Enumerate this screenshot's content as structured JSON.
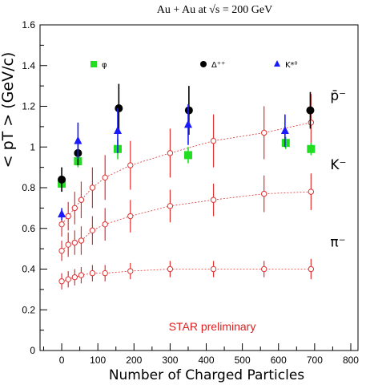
{
  "chart_data": {
    "type": "scatter",
    "title": "Au + Au at √s = 200 GeV",
    "xlabel": "Number of Charged Particles",
    "ylabel": "< pT > (GeV/c)",
    "xlim": [
      -60,
      820
    ],
    "ylim": [
      0,
      1.6
    ],
    "xticks": [
      0,
      100,
      200,
      300,
      400,
      500,
      600,
      700,
      800
    ],
    "yticks": [
      0,
      0.2,
      0.4,
      0.6,
      0.8,
      1,
      1.2,
      1.4,
      1.6
    ],
    "annotation": "STAR preliminary",
    "colors": {
      "pbar": "#e03030",
      "phi": "#22dd22",
      "delta": "#000000",
      "kstar": "#1a1aff"
    },
    "lines": [
      {
        "name": "p̄⁻",
        "label": "p̄⁻",
        "x": [
          0,
          18,
          36,
          54,
          85,
          120,
          190,
          300,
          420,
          560,
          690
        ],
        "y": [
          0.62,
          0.66,
          0.7,
          0.74,
          0.8,
          0.85,
          0.91,
          0.97,
          1.03,
          1.07,
          1.12
        ],
        "err": [
          0.06,
          0.07,
          0.08,
          0.09,
          0.1,
          0.11,
          0.12,
          0.12,
          0.13,
          0.13,
          0.14
        ]
      },
      {
        "name": "K⁻",
        "label": "K⁻",
        "x": [
          0,
          18,
          36,
          54,
          85,
          120,
          190,
          300,
          420,
          560,
          690
        ],
        "y": [
          0.49,
          0.52,
          0.53,
          0.54,
          0.59,
          0.62,
          0.66,
          0.71,
          0.74,
          0.77,
          0.78
        ],
        "err": [
          0.05,
          0.06,
          0.06,
          0.07,
          0.07,
          0.08,
          0.08,
          0.08,
          0.08,
          0.09,
          0.09
        ]
      },
      {
        "name": "π⁻",
        "label": "π⁻",
        "x": [
          0,
          18,
          36,
          54,
          85,
          120,
          190,
          300,
          420,
          560,
          690
        ],
        "y": [
          0.34,
          0.35,
          0.36,
          0.37,
          0.38,
          0.38,
          0.39,
          0.4,
          0.4,
          0.4,
          0.4
        ],
        "err": [
          0.04,
          0.04,
          0.04,
          0.04,
          0.04,
          0.04,
          0.04,
          0.04,
          0.04,
          0.04,
          0.05
        ]
      }
    ],
    "markers": [
      {
        "name": "φ",
        "shape": "square",
        "color": "#22dd22",
        "x": [
          0,
          45,
          155,
          350,
          620,
          690
        ],
        "y": [
          0.82,
          0.93,
          0.99,
          0.96,
          1.02,
          0.99
        ],
        "err": [
          0.02,
          0.03,
          0.05,
          0.04,
          0.03,
          0.03
        ]
      },
      {
        "name": "Δ⁺⁺",
        "shape": "circle",
        "color": "#000000",
        "x": [
          0,
          45,
          158,
          352,
          688
        ],
        "y": [
          0.84,
          0.97,
          1.19,
          1.18,
          1.18
        ],
        "err": [
          0.06,
          0.06,
          0.12,
          0.12,
          0.09
        ]
      },
      {
        "name": "K*⁰",
        "shape": "triangle",
        "color": "#1a1aff",
        "x": [
          0,
          45,
          155,
          350,
          618
        ],
        "y": [
          0.67,
          1.03,
          1.08,
          1.11,
          1.08
        ],
        "err": [
          0.03,
          0.09,
          0.11,
          0.1,
          0.08
        ]
      }
    ],
    "legend": [
      {
        "name": "φ",
        "shape": "square",
        "color": "#22dd22"
      },
      {
        "name": "Δ⁺⁺",
        "shape": "circle",
        "color": "#000000"
      },
      {
        "name": "K*⁰",
        "shape": "triangle",
        "color": "#1a1aff"
      }
    ]
  }
}
